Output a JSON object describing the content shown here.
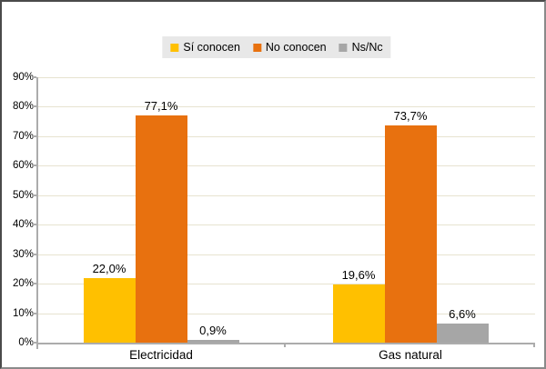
{
  "legend": {
    "items": [
      {
        "label": "Sí conocen",
        "color": "#FFC000"
      },
      {
        "label": "No conocen",
        "color": "#E8710F"
      },
      {
        "label": "Ns/Nc",
        "color": "#A6A6A6"
      }
    ],
    "background": "#E8E8E8"
  },
  "chart_data": {
    "type": "bar",
    "categories": [
      "Electricidad",
      "Gas natural"
    ],
    "series": [
      {
        "name": "Sí conocen",
        "color": "#FFC000",
        "values": [
          22.0,
          19.6
        ],
        "labels": [
          "22,0%",
          "19,6%"
        ]
      },
      {
        "name": "No conocen",
        "color": "#E8710F",
        "values": [
          77.1,
          73.7
        ],
        "labels": [
          "77,1%",
          "73,7%"
        ]
      },
      {
        "name": "Ns/Nc",
        "color": "#A6A6A6",
        "values": [
          0.9,
          6.6
        ],
        "labels": [
          "0,9%",
          "6,6%"
        ]
      }
    ],
    "title": "",
    "xlabel": "",
    "ylabel": "",
    "ylim": [
      0,
      90
    ],
    "ytick_step": 10,
    "ytick_labels": [
      "0%",
      "10%",
      "20%",
      "30%",
      "40%",
      "50%",
      "60%",
      "70%",
      "80%",
      "90%"
    ],
    "grid": true,
    "legend_position": "top"
  },
  "colors": {
    "grid": "#E7E3D0",
    "axis": "#ACACAC",
    "plot_background": "#FFFFFF",
    "label_text": "#000000"
  }
}
